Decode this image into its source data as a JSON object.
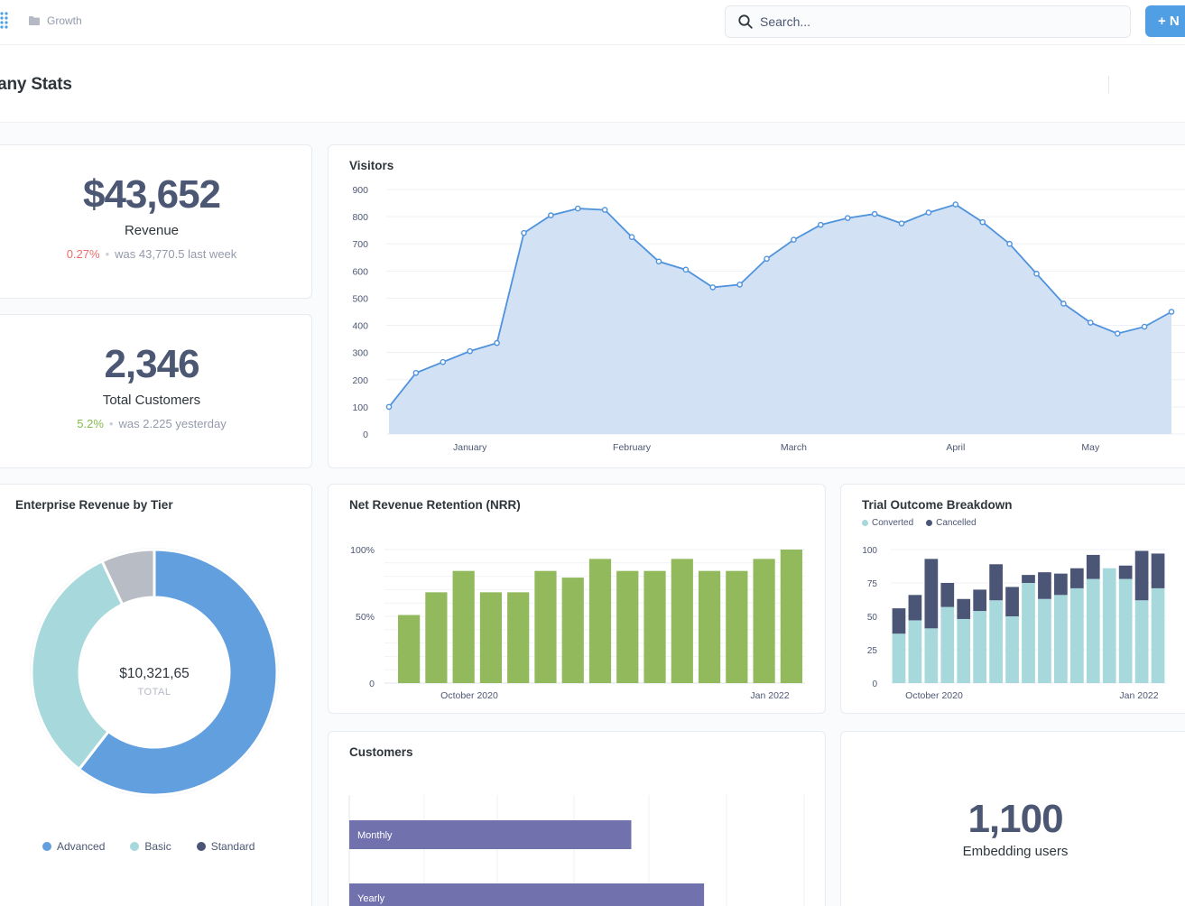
{
  "topbar": {
    "breadcrumb": "Growth",
    "search_placeholder": "Search...",
    "new_button_label": "+ N"
  },
  "header": {
    "title": "mpany Stats"
  },
  "revenue_card": {
    "value": "$43,652",
    "label": "Revenue",
    "change": "0.27%",
    "comparison": "was 43,770.5 last week"
  },
  "customers_card": {
    "value": "2,346",
    "label": "Total Customers",
    "change": "5.2%",
    "comparison": "was 2.225 yesterday"
  },
  "embedding_card": {
    "value": "1,100",
    "label": "Embedding users"
  },
  "colors": {
    "accent": "#509ee3",
    "area_fill": "#d3e1f4",
    "area_line": "#4f93dc",
    "nrr_bar": "#92b95c",
    "converted": "#a6d8dc",
    "cancelled": "#4b5677",
    "advanced": "#629fde",
    "basic": "#a6d8dc",
    "standard": "#b8bcc4",
    "customers_bar": "#7172ad"
  },
  "chart_data": [
    {
      "id": "visitors",
      "type": "area",
      "title": "Visitors",
      "x_tick_labels": [
        "January",
        "February",
        "March",
        "April",
        "May"
      ],
      "y_ticks": [
        0,
        100,
        200,
        300,
        400,
        500,
        600,
        700,
        800,
        900
      ],
      "ylim": [
        0,
        900
      ],
      "values": [
        100,
        225,
        265,
        305,
        335,
        740,
        805,
        830,
        825,
        725,
        635,
        605,
        540,
        550,
        645,
        715,
        770,
        795,
        810,
        775,
        815,
        845,
        780,
        700,
        590,
        480,
        410,
        370,
        395,
        450
      ],
      "grid": true
    },
    {
      "id": "nrr",
      "type": "bar",
      "title": "Net Revenue Retention (NRR)",
      "x_tick_labels": [
        "October 2020",
        "Jan 2022"
      ],
      "y_tick_labels": [
        "0",
        "50%",
        "100%"
      ],
      "ylim": [
        0,
        100
      ],
      "values": [
        51,
        68,
        84,
        68,
        68,
        84,
        79,
        93,
        84,
        84,
        93,
        84,
        84,
        93,
        100
      ],
      "grid": true
    },
    {
      "id": "trial",
      "type": "bar",
      "stacked": true,
      "title": "Trial Outcome Breakdown",
      "x_tick_labels": [
        "October 2020",
        "Jan 2022"
      ],
      "y_ticks": [
        0,
        25,
        50,
        75,
        100
      ],
      "ylim": [
        0,
        100
      ],
      "legend": "top-left",
      "series": [
        {
          "name": "Converted",
          "values": [
            37,
            47,
            41,
            57,
            48,
            54,
            62,
            50,
            75,
            63,
            66,
            71,
            78,
            86,
            78,
            62,
            71
          ]
        },
        {
          "name": "Cancelled",
          "values": [
            19,
            19,
            52,
            18,
            15,
            16,
            27,
            22,
            6,
            20,
            16,
            15,
            18,
            0,
            10,
            37,
            26
          ]
        }
      ]
    },
    {
      "id": "enterprise",
      "type": "pie",
      "title": "Enterprise Revenue by Tier",
      "center_value": "$10,321,65",
      "center_label": "TOTAL",
      "legend": "bottom",
      "slices": [
        {
          "name": "Advanced",
          "value": 60.5
        },
        {
          "name": "Basic",
          "value": 32.5
        },
        {
          "name": "Standard",
          "value": 7
        }
      ]
    },
    {
      "id": "customers",
      "type": "bar",
      "orientation": "horizontal",
      "title": "Customers",
      "categories": [
        "Monthly",
        "Yearly"
      ],
      "values": [
        62,
        78
      ],
      "grid": true
    }
  ]
}
